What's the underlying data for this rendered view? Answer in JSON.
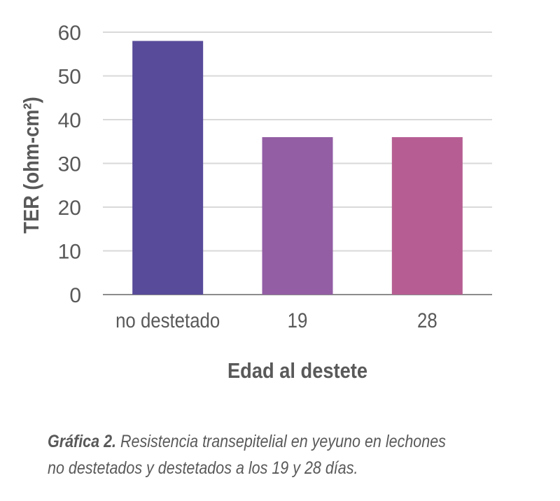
{
  "chart_data": {
    "type": "bar",
    "categories": [
      "no destetado",
      "19",
      "28"
    ],
    "values": [
      58,
      36,
      36
    ],
    "colors": [
      "#584b9a",
      "#935ea4",
      "#b65e93"
    ],
    "xlabel": "Edad al destete",
    "ylabel": "TER (ohm-cm²)",
    "ylim": [
      0,
      60
    ],
    "yticks": [
      0,
      10,
      20,
      30,
      40,
      50,
      60
    ],
    "grid": true,
    "gridColor": "#d9d9d9"
  },
  "caption": {
    "label": "Gráfica 2.",
    "line1": " Resistencia transepitelial en yeyuno en lechones",
    "line2": "no destetados y destetados a los 19 y 28 días."
  }
}
